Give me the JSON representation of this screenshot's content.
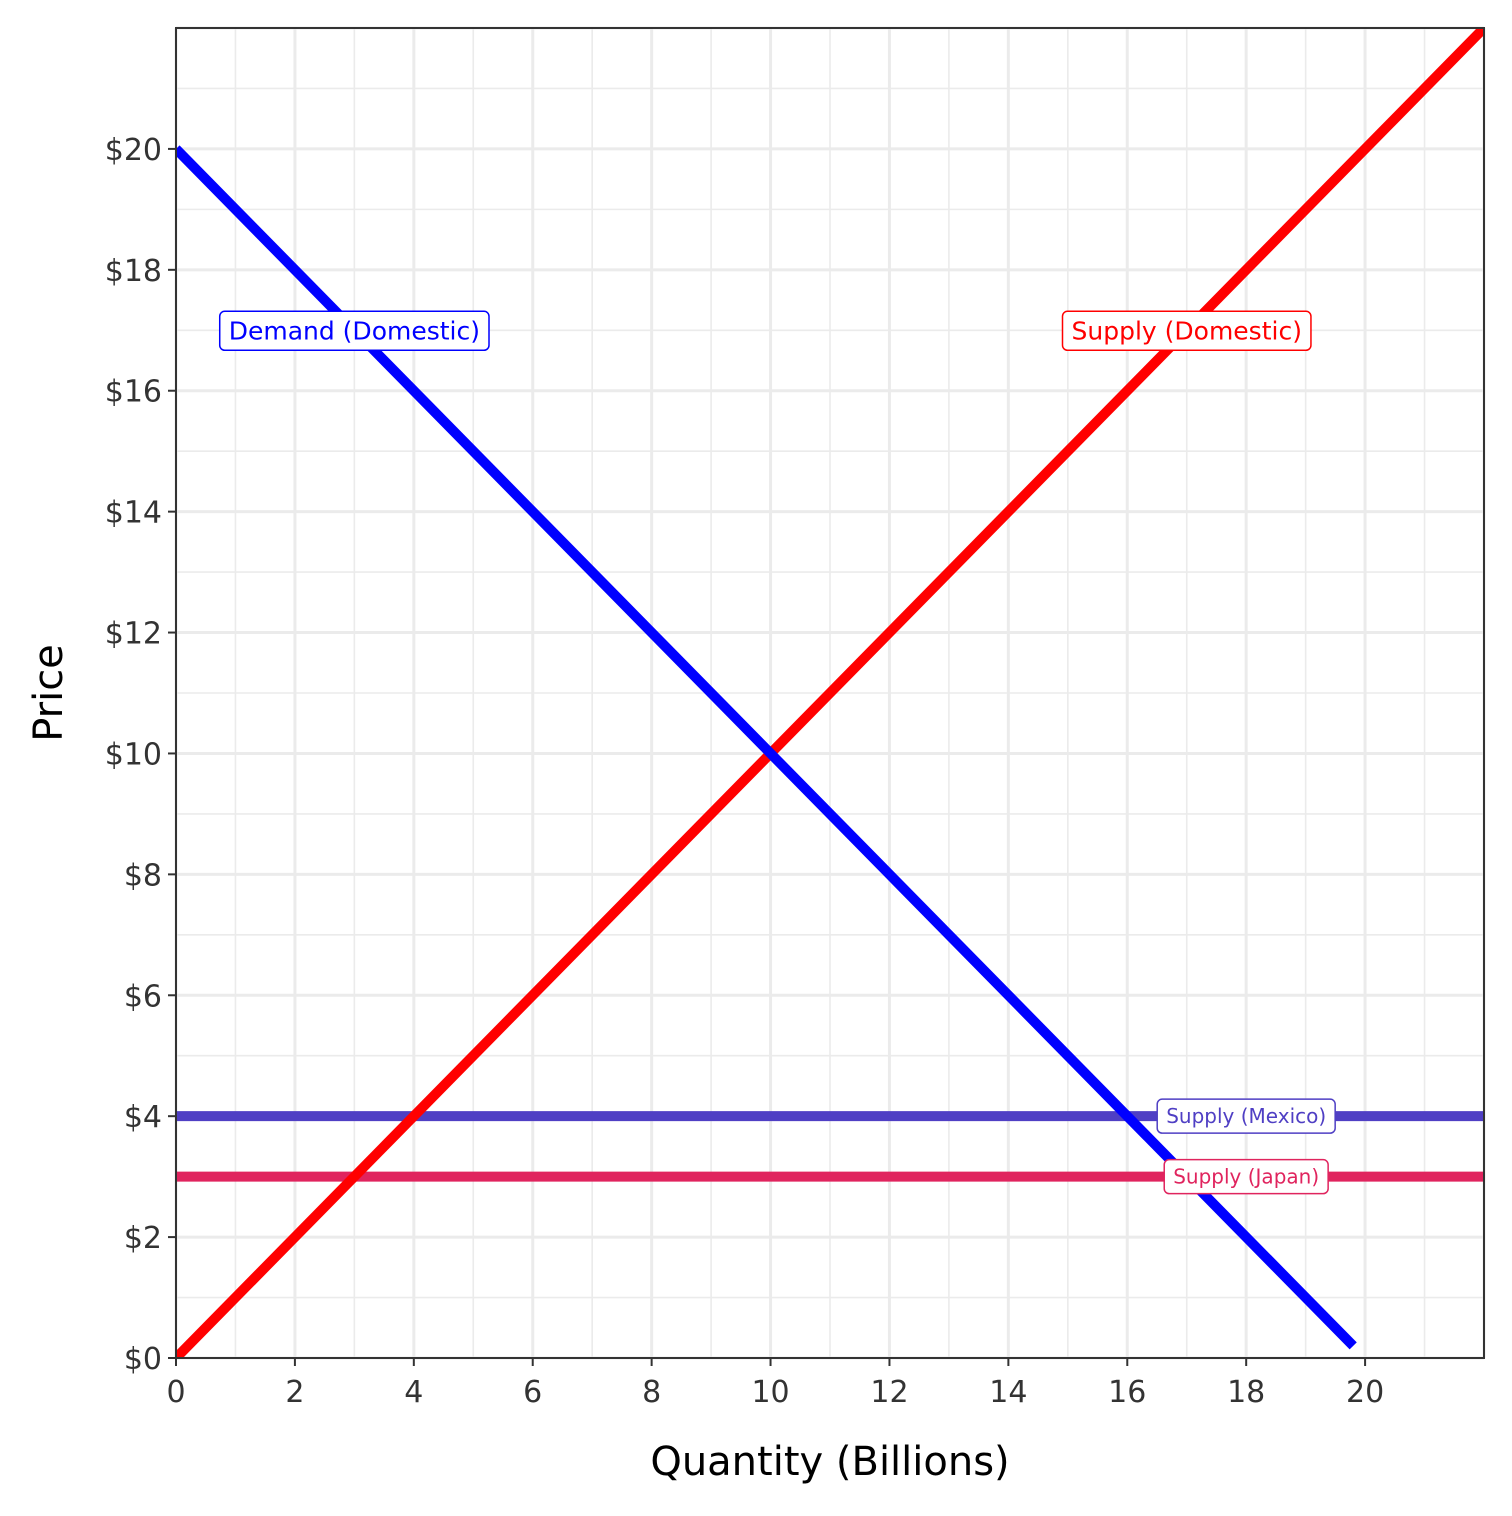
{
  "chart_data": {
    "type": "line",
    "title": "",
    "xlabel": "Quantity (Billions)",
    "ylabel": "Price",
    "xlim": [
      0,
      22
    ],
    "ylim": [
      0,
      22
    ],
    "grid": true,
    "x_ticks": [
      0,
      2,
      4,
      6,
      8,
      10,
      12,
      14,
      16,
      18,
      20
    ],
    "x_tick_labels": [
      "0",
      "2",
      "4",
      "6",
      "8",
      "10",
      "12",
      "14",
      "16",
      "18",
      "20"
    ],
    "y_ticks": [
      0,
      2,
      4,
      6,
      8,
      10,
      12,
      14,
      16,
      18,
      20
    ],
    "y_tick_labels": [
      "$0",
      "$2",
      "$4",
      "$6",
      "$8",
      "$10",
      "$12",
      "$14",
      "$16",
      "$18",
      "$20"
    ],
    "series": [
      {
        "id": "demand-domestic",
        "name": "Demand (Domestic)",
        "color": "#0000ff",
        "points": [
          [
            0,
            20
          ],
          [
            19.8,
            0.2
          ]
        ],
        "label_at": [
          3,
          17
        ]
      },
      {
        "id": "supply-domestic",
        "name": "Supply (Domestic)",
        "color": "#ff0000",
        "points": [
          [
            0,
            0
          ],
          [
            22,
            22
          ]
        ],
        "label_at": [
          17,
          17
        ]
      },
      {
        "id": "supply-mexico",
        "name": "Supply (Mexico)",
        "color": "#4f3fc4",
        "points": [
          [
            0,
            4
          ],
          [
            22,
            4
          ]
        ],
        "label_at": [
          18,
          4
        ]
      },
      {
        "id": "supply-japan",
        "name": "Supply (Japan)",
        "color": "#e0245e",
        "points": [
          [
            0,
            3
          ],
          [
            22,
            3
          ]
        ],
        "label_at": [
          18,
          3
        ]
      }
    ]
  }
}
